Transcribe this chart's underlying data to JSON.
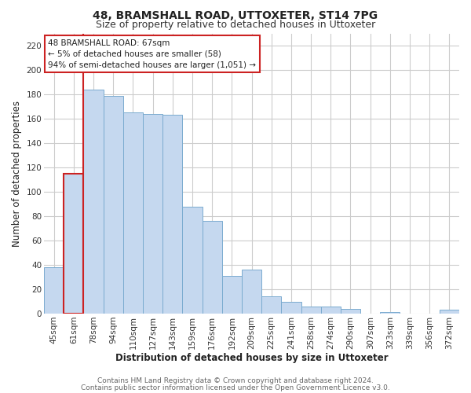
{
  "title": "48, BRAMSHALL ROAD, UTTOXETER, ST14 7PG",
  "subtitle": "Size of property relative to detached houses in Uttoxeter",
  "xlabel": "Distribution of detached houses by size in Uttoxeter",
  "ylabel": "Number of detached properties",
  "bar_labels": [
    "45sqm",
    "61sqm",
    "78sqm",
    "94sqm",
    "110sqm",
    "127sqm",
    "143sqm",
    "159sqm",
    "176sqm",
    "192sqm",
    "209sqm",
    "225sqm",
    "241sqm",
    "258sqm",
    "274sqm",
    "290sqm",
    "307sqm",
    "323sqm",
    "339sqm",
    "356sqm",
    "372sqm"
  ],
  "bar_values": [
    38,
    115,
    184,
    179,
    165,
    164,
    163,
    88,
    76,
    31,
    36,
    14,
    10,
    6,
    6,
    4,
    0,
    1,
    0,
    0,
    3
  ],
  "bar_color": "#c5d8ef",
  "bar_edge_color": "#7aabcf",
  "highlight_bar_index": 1,
  "highlight_line_color": "#cc2222",
  "annotation_text": "48 BRAMSHALL ROAD: 67sqm\n← 5% of detached houses are smaller (58)\n94% of semi-detached houses are larger (1,051) →",
  "annotation_box_color": "#ffffff",
  "annotation_box_edge_color": "#cc2222",
  "ylim": [
    0,
    230
  ],
  "yticks": [
    0,
    20,
    40,
    60,
    80,
    100,
    120,
    140,
    160,
    180,
    200,
    220
  ],
  "footer_line1": "Contains HM Land Registry data © Crown copyright and database right 2024.",
  "footer_line2": "Contains public sector information licensed under the Open Government Licence v3.0.",
  "plot_bg_color": "#ffffff",
  "fig_bg_color": "#ffffff",
  "grid_color": "#cccccc",
  "title_fontsize": 10,
  "subtitle_fontsize": 9,
  "axis_label_fontsize": 8.5,
  "tick_fontsize": 7.5,
  "footer_fontsize": 6.5
}
